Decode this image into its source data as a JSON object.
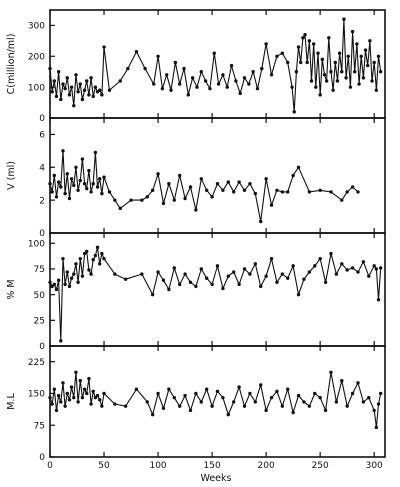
{
  "chart_data": {
    "type": "line",
    "xlabel": "Weeks",
    "xlim": [
      0,
      310
    ],
    "xticks": [
      0,
      50,
      100,
      150,
      200,
      250,
      300
    ],
    "panels": [
      {
        "ylabel": "C(million/ml)",
        "ylim": [
          0,
          350
        ],
        "yticks": [
          0,
          100,
          200,
          300
        ],
        "x": [
          0,
          2,
          4,
          6,
          8,
          10,
          12,
          14,
          16,
          18,
          20,
          22,
          24,
          26,
          28,
          30,
          32,
          34,
          36,
          38,
          40,
          42,
          44,
          46,
          48,
          50,
          55,
          65,
          72,
          80,
          88,
          96,
          100,
          104,
          108,
          112,
          116,
          120,
          124,
          128,
          132,
          136,
          140,
          144,
          148,
          152,
          156,
          160,
          164,
          168,
          172,
          176,
          180,
          184,
          188,
          192,
          196,
          200,
          205,
          210,
          215,
          220,
          224,
          226,
          228,
          230,
          232,
          234,
          236,
          238,
          240,
          242,
          244,
          246,
          248,
          250,
          252,
          254,
          256,
          258,
          260,
          262,
          264,
          266,
          268,
          270,
          272,
          274,
          276,
          278,
          280,
          282,
          284,
          286,
          288,
          290,
          292,
          294,
          296,
          298,
          300,
          302,
          304,
          306
        ],
        "values": [
          160,
          85,
          120,
          70,
          150,
          60,
          110,
          95,
          130,
          75,
          100,
          40,
          140,
          85,
          110,
          60,
          90,
          120,
          75,
          130,
          70,
          100,
          85,
          90,
          75,
          230,
          90,
          120,
          160,
          215,
          160,
          110,
          200,
          95,
          140,
          90,
          180,
          110,
          160,
          75,
          130,
          100,
          150,
          120,
          95,
          210,
          110,
          140,
          100,
          170,
          120,
          80,
          130,
          110,
          150,
          95,
          160,
          240,
          140,
          200,
          210,
          180,
          100,
          20,
          150,
          230,
          180,
          260,
          270,
          180,
          250,
          120,
          240,
          100,
          210,
          75,
          190,
          140,
          120,
          260,
          150,
          90,
          180,
          120,
          210,
          150,
          320,
          130,
          200,
          100,
          280,
          150,
          240,
          110,
          200,
          130,
          220,
          170,
          250,
          120,
          180,
          90,
          200,
          150
        ]
      },
      {
        "ylabel": "V (ml)",
        "ylim": [
          0,
          7
        ],
        "yticks": [
          0,
          2,
          4,
          6
        ],
        "x": [
          0,
          2,
          4,
          6,
          8,
          10,
          12,
          14,
          16,
          18,
          20,
          22,
          24,
          26,
          28,
          30,
          32,
          34,
          36,
          38,
          40,
          42,
          44,
          46,
          48,
          50,
          55,
          60,
          65,
          75,
          85,
          90,
          95,
          100,
          105,
          110,
          115,
          120,
          125,
          130,
          135,
          140,
          145,
          150,
          155,
          160,
          165,
          170,
          175,
          180,
          185,
          190,
          195,
          200,
          205,
          210,
          215,
          220,
          225,
          230,
          240,
          250,
          260,
          270,
          275,
          280,
          285
        ],
        "values": [
          3.0,
          2.5,
          3.5,
          2.2,
          3.1,
          2.8,
          5.0,
          2.4,
          3.6,
          2.1,
          3.3,
          2.9,
          4.0,
          2.6,
          3.2,
          4.5,
          3.0,
          2.7,
          3.8,
          2.5,
          3.0,
          4.9,
          2.8,
          3.3,
          2.4,
          3.4,
          2.5,
          2.0,
          1.5,
          2.0,
          2.0,
          2.2,
          2.6,
          3.6,
          1.8,
          3.0,
          2.0,
          3.5,
          2.1,
          2.8,
          1.4,
          3.3,
          2.6,
          2.2,
          3.0,
          2.6,
          3.1,
          2.5,
          3.1,
          2.6,
          3.0,
          2.4,
          0.7,
          3.3,
          1.7,
          2.6,
          2.5,
          2.5,
          3.5,
          4.0,
          2.5,
          2.6,
          2.5,
          2.0,
          2.5,
          2.8,
          2.5
        ]
      },
      {
        "ylabel": "% M",
        "ylim": [
          0,
          110
        ],
        "yticks": [
          0,
          25,
          50,
          75,
          100
        ],
        "x": [
          0,
          2,
          4,
          6,
          8,
          10,
          12,
          14,
          16,
          18,
          20,
          22,
          24,
          26,
          28,
          30,
          32,
          34,
          36,
          38,
          40,
          42,
          44,
          46,
          48,
          50,
          60,
          70,
          85,
          95,
          100,
          105,
          110,
          115,
          120,
          125,
          130,
          135,
          140,
          145,
          150,
          155,
          160,
          165,
          170,
          175,
          180,
          185,
          190,
          195,
          200,
          205,
          210,
          215,
          220,
          225,
          230,
          235,
          240,
          245,
          250,
          255,
          260,
          265,
          270,
          275,
          280,
          285,
          290,
          295,
          300,
          302,
          304,
          306
        ],
        "values": [
          62,
          58,
          60,
          55,
          64,
          5,
          85,
          60,
          72,
          58,
          66,
          70,
          80,
          62,
          85,
          68,
          90,
          92,
          74,
          70,
          84,
          88,
          96,
          80,
          90,
          85,
          70,
          65,
          70,
          50,
          72,
          64,
          55,
          76,
          60,
          70,
          62,
          58,
          75,
          66,
          60,
          78,
          56,
          68,
          72,
          60,
          75,
          70,
          80,
          58,
          68,
          85,
          62,
          70,
          66,
          78,
          50,
          65,
          72,
          78,
          85,
          62,
          90,
          70,
          80,
          74,
          76,
          72,
          82,
          68,
          78,
          75,
          45,
          76
        ]
      },
      {
        "ylabel": "M.L",
        "ylim": [
          0,
          262
        ],
        "yticks": [
          0,
          75,
          150,
          225
        ],
        "x": [
          0,
          2,
          4,
          6,
          8,
          10,
          12,
          14,
          16,
          18,
          20,
          22,
          24,
          26,
          28,
          30,
          32,
          34,
          36,
          38,
          40,
          42,
          44,
          46,
          48,
          50,
          60,
          70,
          80,
          90,
          95,
          100,
          105,
          110,
          115,
          120,
          125,
          130,
          135,
          140,
          145,
          150,
          155,
          160,
          165,
          170,
          175,
          180,
          185,
          190,
          195,
          200,
          205,
          210,
          215,
          220,
          225,
          230,
          235,
          240,
          245,
          250,
          255,
          260,
          265,
          270,
          275,
          280,
          285,
          290,
          295,
          300,
          302,
          304,
          306
        ],
        "values": [
          140,
          125,
          160,
          110,
          145,
          130,
          175,
          120,
          150,
          135,
          165,
          140,
          200,
          130,
          180,
          140,
          160,
          150,
          185,
          125,
          155,
          140,
          145,
          135,
          120,
          150,
          125,
          120,
          160,
          130,
          100,
          150,
          115,
          160,
          140,
          120,
          145,
          110,
          150,
          130,
          160,
          120,
          155,
          140,
          100,
          130,
          165,
          120,
          150,
          130,
          170,
          110,
          140,
          155,
          120,
          160,
          105,
          145,
          130,
          120,
          150,
          140,
          110,
          200,
          130,
          180,
          120,
          150,
          175,
          130,
          140,
          110,
          70,
          125,
          150
        ]
      }
    ]
  }
}
